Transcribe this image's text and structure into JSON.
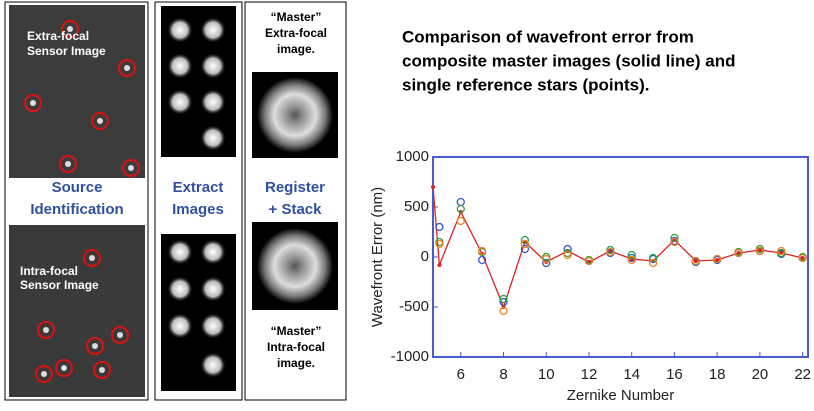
{
  "panels": {
    "source": {
      "upper_label": [
        "Extra-focal",
        "Sensor Image"
      ],
      "step": [
        "Source",
        "Identification"
      ],
      "lower_label": [
        "Intra-focal",
        "Sensor Image"
      ]
    },
    "extract": {
      "step": [
        "Extract",
        "Images"
      ]
    },
    "stack": {
      "upper_label": [
        "“Master”",
        "Extra-focal",
        "image."
      ],
      "step": [
        "Register",
        "+ Stack"
      ],
      "lower_label": [
        "“Master”",
        "Intra-focal",
        "image."
      ]
    }
  },
  "chart_data": {
    "type": "line",
    "title": [
      "Comparison of wavefront error from",
      "composite master images (solid line) and",
      "single reference stars (points)."
    ],
    "x_label": "Zernike Number",
    "y_label": "Wavefront Error (nm)",
    "xlim": [
      4.7,
      22.25
    ],
    "ylim": [
      -1000,
      1000
    ],
    "xticks": [
      6,
      8,
      10,
      12,
      14,
      16,
      18,
      20,
      22
    ],
    "yticks": [
      -1000,
      -500,
      0,
      500,
      1000
    ],
    "series": [
      {
        "style": "line",
        "color": "#e02020",
        "x": [
          4.7,
          5,
          6,
          7,
          8,
          9,
          10,
          11,
          12,
          13,
          14,
          15,
          16,
          17,
          18,
          19,
          20,
          21,
          22
        ],
        "values": [
          700,
          -80,
          450,
          30,
          -500,
          150,
          -50,
          60,
          -50,
          60,
          -20,
          -40,
          170,
          -40,
          -30,
          40,
          70,
          40,
          -10
        ]
      },
      {
        "style": "points",
        "color": "#3355cc",
        "x": [
          5,
          6,
          7,
          8,
          9,
          10,
          11,
          12,
          13,
          14,
          15,
          16,
          17,
          18,
          19,
          20,
          21,
          22
        ],
        "values": [
          300,
          550,
          -30,
          -450,
          80,
          -60,
          80,
          -40,
          40,
          -10,
          -20,
          160,
          -50,
          -30,
          40,
          60,
          30,
          -10
        ]
      },
      {
        "style": "points",
        "color": "#2e9e3e",
        "x": [
          5,
          6,
          7,
          8,
          9,
          10,
          11,
          12,
          13,
          14,
          15,
          16,
          17,
          18,
          19,
          20,
          21,
          22
        ],
        "values": [
          150,
          480,
          50,
          -420,
          170,
          0,
          40,
          -30,
          70,
          20,
          -10,
          190,
          -40,
          -20,
          50,
          80,
          40,
          0
        ]
      },
      {
        "style": "points",
        "color": "#f08020",
        "x": [
          5,
          6,
          7,
          8,
          9,
          10,
          11,
          12,
          13,
          14,
          15,
          16,
          17,
          18,
          19,
          20,
          21,
          22
        ],
        "values": [
          130,
          360,
          60,
          -540,
          130,
          -20,
          20,
          -40,
          50,
          -30,
          -60,
          150,
          -40,
          -20,
          40,
          60,
          60,
          -10
        ]
      }
    ]
  }
}
